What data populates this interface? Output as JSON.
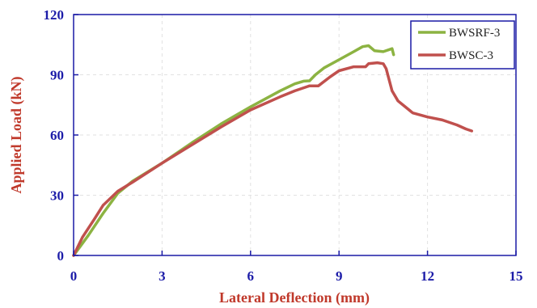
{
  "chart_data": {
    "type": "line",
    "title": "",
    "xlabel": "Lateral Deflection (mm)",
    "ylabel": "Applied Load (kN)",
    "xlim": [
      0,
      15
    ],
    "ylim": [
      0,
      120
    ],
    "xticks": [
      0,
      3,
      6,
      9,
      12,
      15
    ],
    "yticks": [
      0,
      30,
      60,
      90,
      120
    ],
    "xtick_labels": [
      "0",
      "3",
      "6",
      "9",
      "12",
      "15"
    ],
    "ytick_labels": [
      "0",
      "30",
      "60",
      "90",
      "120"
    ],
    "grid": true,
    "legend_position": "top-right",
    "series": [
      {
        "name": "BWSRF-3",
        "color": "#8cb342",
        "points": [
          [
            0,
            0
          ],
          [
            0.2,
            4
          ],
          [
            0.5,
            10
          ],
          [
            1,
            21
          ],
          [
            1.5,
            31
          ],
          [
            2,
            37
          ],
          [
            3,
            46
          ],
          [
            4,
            56
          ],
          [
            5,
            65.5
          ],
          [
            6,
            74
          ],
          [
            7,
            82
          ],
          [
            7.5,
            85.5
          ],
          [
            7.8,
            86.8
          ],
          [
            8,
            87
          ],
          [
            8.2,
            90
          ],
          [
            8.5,
            93.5
          ],
          [
            9,
            97.5
          ],
          [
            9.5,
            101.5
          ],
          [
            9.8,
            104
          ],
          [
            10,
            104.5
          ],
          [
            10.2,
            102
          ],
          [
            10.5,
            101.5
          ],
          [
            10.8,
            103
          ],
          [
            10.85,
            100
          ]
        ]
      },
      {
        "name": "BWSC-3",
        "color": "#c0504d",
        "points": [
          [
            0,
            0
          ],
          [
            0.3,
            9
          ],
          [
            0.7,
            18
          ],
          [
            1,
            25
          ],
          [
            1.5,
            32
          ],
          [
            2,
            36.5
          ],
          [
            3,
            46
          ],
          [
            4,
            55
          ],
          [
            5,
            64
          ],
          [
            6,
            72.5
          ],
          [
            7,
            79
          ],
          [
            7.5,
            82
          ],
          [
            8,
            84.5
          ],
          [
            8.3,
            84.5
          ],
          [
            8.7,
            89
          ],
          [
            9,
            92
          ],
          [
            9.5,
            94
          ],
          [
            9.9,
            94
          ],
          [
            10,
            95.5
          ],
          [
            10.3,
            96
          ],
          [
            10.5,
            95.5
          ],
          [
            10.6,
            93
          ],
          [
            10.8,
            82
          ],
          [
            11,
            77
          ],
          [
            11.5,
            71
          ],
          [
            12,
            69
          ],
          [
            12.5,
            67.5
          ],
          [
            13,
            65
          ],
          [
            13.3,
            63
          ],
          [
            13.5,
            62
          ]
        ]
      }
    ]
  }
}
